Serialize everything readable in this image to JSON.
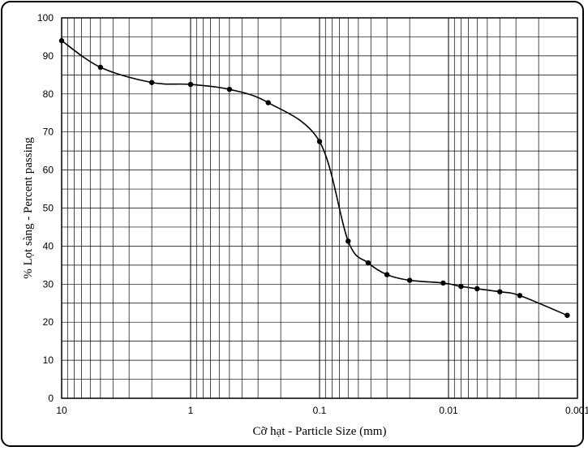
{
  "chart_data": {
    "type": "line",
    "title": "",
    "xlabel": "Cỡ hạt - Particle Size  (mm)",
    "ylabel": "% Lọt sàng - Percent  passing",
    "x_scale": "log-reversed",
    "xlim": [
      10,
      0.001
    ],
    "ylim": [
      0,
      100
    ],
    "x_ticks": [
      "10",
      "1",
      "0.1",
      "0.01",
      "0.001"
    ],
    "y_ticks": [
      "0",
      "10",
      "20",
      "30",
      "40",
      "50",
      "60",
      "70",
      "80",
      "90",
      "100"
    ],
    "grid": true,
    "legend": "none",
    "series": [
      {
        "x": [
          10,
          5,
          2,
          1,
          0.5,
          0.25,
          0.1,
          0.06,
          0.042,
          0.03,
          0.02,
          0.011,
          0.008,
          0.006,
          0.004,
          0.0028,
          0.0012
        ],
        "y": [
          94,
          87,
          83,
          82.5,
          81.2,
          77.7,
          67.5,
          41.3,
          35.6,
          32.5,
          31,
          30.3,
          29.4,
          28.8,
          28,
          27,
          21.8
        ]
      }
    ],
    "colors": {
      "line": "#000000",
      "grid": "#000000",
      "points": "#000000"
    }
  }
}
